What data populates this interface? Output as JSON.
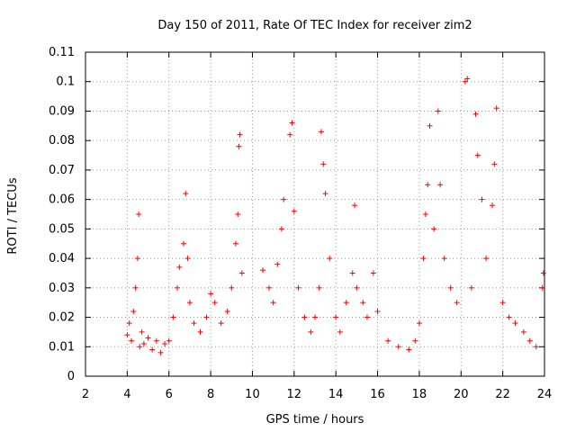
{
  "chart_data": {
    "type": "scatter",
    "title": "Day 150 of 2011, Rate Of TEC Index for receiver zim2",
    "xlabel": "GPS time / hours",
    "ylabel": "ROTI / TECUs",
    "xlim": [
      2,
      24
    ],
    "ylim": [
      0,
      0.11
    ],
    "x_ticks": [
      2,
      4,
      6,
      8,
      10,
      12,
      14,
      16,
      18,
      20,
      22,
      24
    ],
    "y_ticks": [
      0,
      0.01,
      0.02,
      0.03,
      0.04,
      0.05,
      0.06,
      0.07,
      0.08,
      0.09,
      0.1,
      0.11
    ],
    "x_tick_labels": [
      "2",
      "4",
      "6",
      "8",
      "10",
      "12",
      "14",
      "16",
      "18",
      "20",
      "22",
      "24"
    ],
    "y_tick_labels": [
      "0",
      "0.01",
      "0.02",
      "0.03",
      "0.04",
      "0.05",
      "0.06",
      "0.07",
      "0.08",
      "0.09",
      "0.1",
      "0.11"
    ],
    "grid": true,
    "marker": "+",
    "color": "#ff0000",
    "points": [
      [
        4.0,
        0.014
      ],
      [
        4.1,
        0.018
      ],
      [
        4.2,
        0.012
      ],
      [
        4.3,
        0.022
      ],
      [
        4.4,
        0.03
      ],
      [
        4.5,
        0.04
      ],
      [
        4.55,
        0.055
      ],
      [
        4.6,
        0.01
      ],
      [
        4.7,
        0.015
      ],
      [
        4.8,
        0.011
      ],
      [
        5.0,
        0.013
      ],
      [
        5.2,
        0.009
      ],
      [
        5.4,
        0.012
      ],
      [
        5.6,
        0.008
      ],
      [
        5.8,
        0.011
      ],
      [
        6.0,
        0.012
      ],
      [
        6.2,
        0.02
      ],
      [
        6.4,
        0.03
      ],
      [
        6.5,
        0.037
      ],
      [
        6.7,
        0.045
      ],
      [
        6.8,
        0.062
      ],
      [
        6.9,
        0.04
      ],
      [
        7.0,
        0.025
      ],
      [
        7.2,
        0.018
      ],
      [
        7.5,
        0.015
      ],
      [
        7.8,
        0.02
      ],
      [
        8.0,
        0.028
      ],
      [
        8.2,
        0.025
      ],
      [
        8.5,
        0.018
      ],
      [
        8.8,
        0.022
      ],
      [
        9.0,
        0.03
      ],
      [
        9.2,
        0.045
      ],
      [
        9.3,
        0.055
      ],
      [
        9.35,
        0.078
      ],
      [
        9.4,
        0.082
      ],
      [
        9.5,
        0.035
      ],
      [
        10.5,
        0.036
      ],
      [
        10.8,
        0.03
      ],
      [
        11.0,
        0.025
      ],
      [
        11.2,
        0.038
      ],
      [
        11.4,
        0.05
      ],
      [
        11.5,
        0.06
      ],
      [
        11.8,
        0.082
      ],
      [
        11.9,
        0.086
      ],
      [
        12.0,
        0.056
      ],
      [
        12.2,
        0.03
      ],
      [
        12.5,
        0.02
      ],
      [
        12.8,
        0.015
      ],
      [
        13.0,
        0.02
      ],
      [
        13.2,
        0.03
      ],
      [
        13.3,
        0.083
      ],
      [
        13.4,
        0.072
      ],
      [
        13.5,
        0.062
      ],
      [
        13.7,
        0.04
      ],
      [
        14.0,
        0.02
      ],
      [
        14.2,
        0.015
      ],
      [
        14.5,
        0.025
      ],
      [
        14.8,
        0.035
      ],
      [
        14.9,
        0.058
      ],
      [
        15.0,
        0.03
      ],
      [
        15.3,
        0.025
      ],
      [
        15.5,
        0.02
      ],
      [
        15.8,
        0.035
      ],
      [
        16.0,
        0.022
      ],
      [
        16.5,
        0.012
      ],
      [
        17.0,
        0.01
      ],
      [
        17.5,
        0.009
      ],
      [
        17.8,
        0.012
      ],
      [
        18.0,
        0.018
      ],
      [
        18.2,
        0.04
      ],
      [
        18.3,
        0.055
      ],
      [
        18.4,
        0.065
      ],
      [
        18.5,
        0.085
      ],
      [
        18.7,
        0.05
      ],
      [
        18.9,
        0.09
      ],
      [
        19.0,
        0.065
      ],
      [
        19.2,
        0.04
      ],
      [
        19.5,
        0.03
      ],
      [
        19.8,
        0.025
      ],
      [
        20.2,
        0.1
      ],
      [
        20.3,
        0.101
      ],
      [
        20.5,
        0.03
      ],
      [
        20.7,
        0.089
      ],
      [
        20.8,
        0.075
      ],
      [
        21.0,
        0.06
      ],
      [
        21.2,
        0.04
      ],
      [
        21.5,
        0.058
      ],
      [
        21.6,
        0.072
      ],
      [
        21.7,
        0.091
      ],
      [
        22.0,
        0.025
      ],
      [
        22.3,
        0.02
      ],
      [
        22.6,
        0.018
      ],
      [
        23.0,
        0.015
      ],
      [
        23.3,
        0.012
      ],
      [
        23.6,
        0.01
      ],
      [
        23.9,
        0.03
      ],
      [
        23.95,
        0.035
      ]
    ]
  }
}
